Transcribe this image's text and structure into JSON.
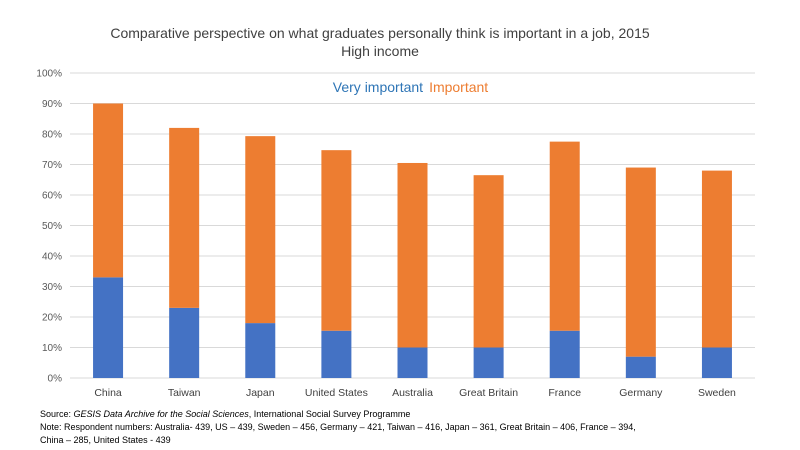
{
  "chart_data": {
    "type": "bar",
    "stacked": true,
    "title": "Comparative perspective on what graduates personally think is important in a job, 2015",
    "subtitle": "High income",
    "categories": [
      "China",
      "Taiwan",
      "Japan",
      "United States",
      "Australia",
      "Great Britain",
      "France",
      "Germany",
      "Sweden"
    ],
    "series": [
      {
        "name": "Very important",
        "color": "#4472C4",
        "values": [
          33,
          23,
          18,
          15.5,
          10,
          10,
          15.5,
          7,
          10
        ]
      },
      {
        "name": "Important",
        "color": "#ED7D31",
        "values": [
          57,
          59,
          61.3,
          59.2,
          60.5,
          56.5,
          62,
          62,
          58
        ]
      }
    ],
    "ylim": [
      0,
      100
    ],
    "yticks": [
      "0%",
      "10%",
      "20%",
      "30%",
      "40%",
      "50%",
      "60%",
      "70%",
      "80%",
      "90%",
      "100%"
    ],
    "grid": true,
    "legend_position": "top-center",
    "xlabel": "",
    "ylabel": ""
  },
  "notes": {
    "source_prefix": "Source: ",
    "source_italic": "GESIS Data Archive for the Social Sciences",
    "source_rest": ", International Social Survey Programme",
    "note_line1": "Note: Respondent numbers: Australia- 439, US – 439, Sweden – 456, Germany – 421, Taiwan – 416, Japan – 361, Great Britain – 406, France – 394,",
    "note_line2": "China – 285, United States - 439"
  }
}
